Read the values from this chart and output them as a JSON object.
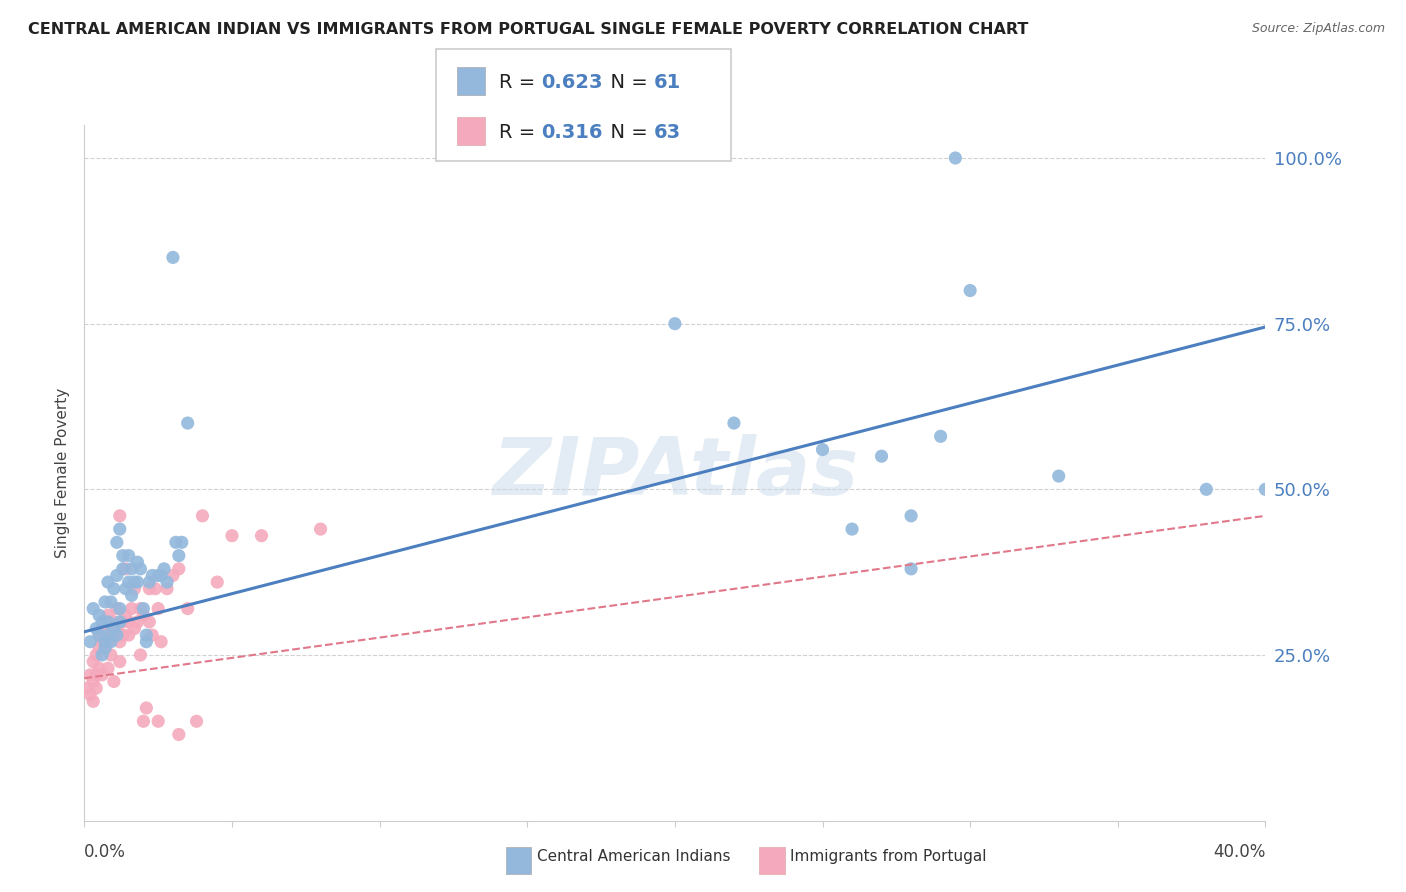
{
  "title": "CENTRAL AMERICAN INDIAN VS IMMIGRANTS FROM PORTUGAL SINGLE FEMALE POVERTY CORRELATION CHART",
  "source": "Source: ZipAtlas.com",
  "ylabel": "Single Female Poverty",
  "legend1_r": "0.623",
  "legend1_n": "61",
  "legend2_r": "0.316",
  "legend2_n": "63",
  "legend1_label": "Central American Indians",
  "legend2_label": "Immigrants from Portugal",
  "watermark": "ZIPAtlas",
  "blue_color": "#93B8DC",
  "pink_color": "#F4AABC",
  "blue_dark": "#4B7FBF",
  "pink_dark": "#E0788A",
  "blue_scatter": [
    [
      0.002,
      0.27
    ],
    [
      0.003,
      0.32
    ],
    [
      0.004,
      0.29
    ],
    [
      0.005,
      0.31
    ],
    [
      0.005,
      0.28
    ],
    [
      0.006,
      0.3
    ],
    [
      0.006,
      0.25
    ],
    [
      0.007,
      0.27
    ],
    [
      0.007,
      0.26
    ],
    [
      0.007,
      0.33
    ],
    [
      0.008,
      0.28
    ],
    [
      0.008,
      0.3
    ],
    [
      0.008,
      0.36
    ],
    [
      0.009,
      0.27
    ],
    [
      0.009,
      0.33
    ],
    [
      0.01,
      0.29
    ],
    [
      0.01,
      0.35
    ],
    [
      0.011,
      0.28
    ],
    [
      0.011,
      0.37
    ],
    [
      0.011,
      0.42
    ],
    [
      0.012,
      0.3
    ],
    [
      0.012,
      0.32
    ],
    [
      0.012,
      0.44
    ],
    [
      0.013,
      0.38
    ],
    [
      0.013,
      0.4
    ],
    [
      0.014,
      0.35
    ],
    [
      0.015,
      0.36
    ],
    [
      0.015,
      0.4
    ],
    [
      0.016,
      0.38
    ],
    [
      0.016,
      0.34
    ],
    [
      0.017,
      0.36
    ],
    [
      0.018,
      0.36
    ],
    [
      0.018,
      0.39
    ],
    [
      0.019,
      0.38
    ],
    [
      0.02,
      0.32
    ],
    [
      0.021,
      0.27
    ],
    [
      0.021,
      0.28
    ],
    [
      0.022,
      0.36
    ],
    [
      0.023,
      0.37
    ],
    [
      0.025,
      0.37
    ],
    [
      0.026,
      0.37
    ],
    [
      0.027,
      0.38
    ],
    [
      0.028,
      0.36
    ],
    [
      0.03,
      0.85
    ],
    [
      0.031,
      0.42
    ],
    [
      0.032,
      0.4
    ],
    [
      0.033,
      0.42
    ],
    [
      0.035,
      0.6
    ],
    [
      0.2,
      0.75
    ],
    [
      0.22,
      0.6
    ],
    [
      0.25,
      0.56
    ],
    [
      0.26,
      0.44
    ],
    [
      0.27,
      0.55
    ],
    [
      0.28,
      0.46
    ],
    [
      0.28,
      0.38
    ],
    [
      0.29,
      0.58
    ],
    [
      0.295,
      1.0
    ],
    [
      0.3,
      0.8
    ],
    [
      0.33,
      0.52
    ],
    [
      0.38,
      0.5
    ],
    [
      0.4,
      0.5
    ]
  ],
  "pink_scatter": [
    [
      0.001,
      0.2
    ],
    [
      0.002,
      0.19
    ],
    [
      0.002,
      0.22
    ],
    [
      0.003,
      0.21
    ],
    [
      0.003,
      0.18
    ],
    [
      0.003,
      0.24
    ],
    [
      0.004,
      0.25
    ],
    [
      0.004,
      0.22
    ],
    [
      0.004,
      0.2
    ],
    [
      0.005,
      0.26
    ],
    [
      0.005,
      0.28
    ],
    [
      0.005,
      0.23
    ],
    [
      0.006,
      0.27
    ],
    [
      0.006,
      0.22
    ],
    [
      0.006,
      0.29
    ],
    [
      0.007,
      0.28
    ],
    [
      0.007,
      0.26
    ],
    [
      0.007,
      0.3
    ],
    [
      0.008,
      0.31
    ],
    [
      0.008,
      0.27
    ],
    [
      0.008,
      0.23
    ],
    [
      0.009,
      0.25
    ],
    [
      0.009,
      0.28
    ],
    [
      0.01,
      0.3
    ],
    [
      0.01,
      0.21
    ],
    [
      0.011,
      0.29
    ],
    [
      0.011,
      0.32
    ],
    [
      0.012,
      0.27
    ],
    [
      0.012,
      0.24
    ],
    [
      0.012,
      0.46
    ],
    [
      0.013,
      0.3
    ],
    [
      0.013,
      0.28
    ],
    [
      0.014,
      0.31
    ],
    [
      0.014,
      0.38
    ],
    [
      0.015,
      0.28
    ],
    [
      0.015,
      0.3
    ],
    [
      0.016,
      0.32
    ],
    [
      0.017,
      0.29
    ],
    [
      0.017,
      0.35
    ],
    [
      0.018,
      0.3
    ],
    [
      0.019,
      0.32
    ],
    [
      0.019,
      0.25
    ],
    [
      0.02,
      0.31
    ],
    [
      0.02,
      0.15
    ],
    [
      0.021,
      0.17
    ],
    [
      0.022,
      0.3
    ],
    [
      0.022,
      0.35
    ],
    [
      0.023,
      0.28
    ],
    [
      0.024,
      0.35
    ],
    [
      0.025,
      0.32
    ],
    [
      0.025,
      0.15
    ],
    [
      0.026,
      0.27
    ],
    [
      0.028,
      0.35
    ],
    [
      0.03,
      0.37
    ],
    [
      0.032,
      0.13
    ],
    [
      0.032,
      0.38
    ],
    [
      0.035,
      0.32
    ],
    [
      0.038,
      0.15
    ],
    [
      0.04,
      0.46
    ],
    [
      0.045,
      0.36
    ],
    [
      0.05,
      0.43
    ],
    [
      0.06,
      0.43
    ],
    [
      0.08,
      0.44
    ]
  ],
  "blue_line_x": [
    0.0,
    0.4
  ],
  "blue_line_y": [
    0.285,
    0.745
  ],
  "pink_line_x": [
    0.0,
    0.4
  ],
  "pink_line_y": [
    0.215,
    0.46
  ],
  "xmin": 0.0,
  "xmax": 0.4,
  "ymin": 0.0,
  "ymax": 1.05,
  "ytick_vals": [
    0.25,
    0.5,
    0.75,
    1.0
  ],
  "ytick_labels": [
    "25.0%",
    "50.0%",
    "75.0%",
    "100.0%"
  ]
}
